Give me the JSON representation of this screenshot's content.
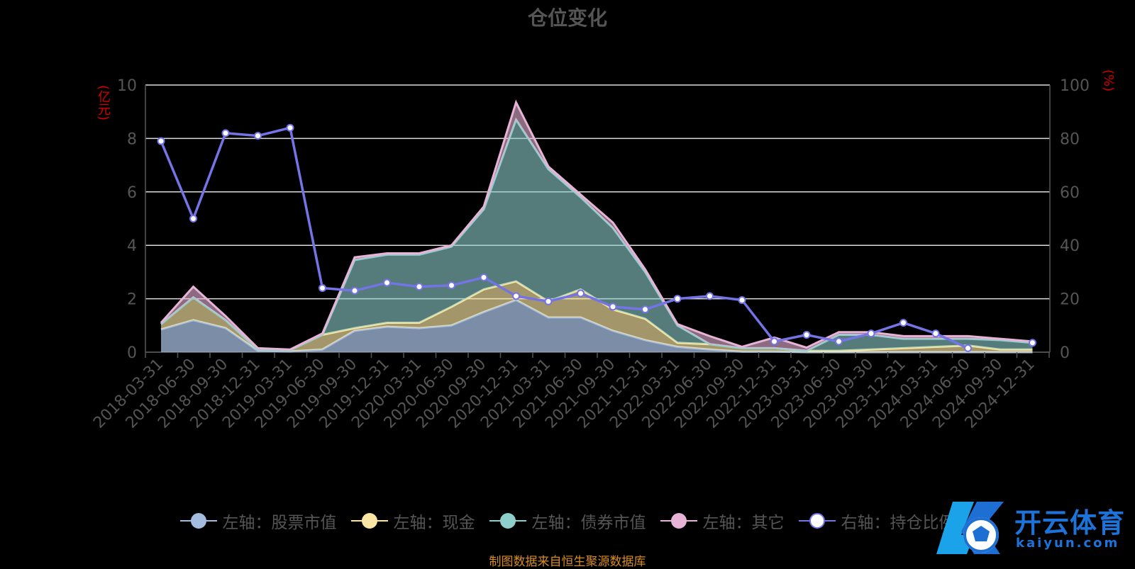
{
  "chart_data": {
    "type": "area",
    "title": "仓位变化",
    "left_axis_unit": "(亿元)",
    "right_axis_unit": "(%)",
    "left_ylim": [
      0,
      10
    ],
    "right_ylim": [
      0,
      100
    ],
    "left_ticks": [
      "0",
      "2",
      "4",
      "6",
      "8",
      "10"
    ],
    "right_ticks": [
      "0",
      "20",
      "40",
      "60",
      "80",
      "100"
    ],
    "grid": true,
    "legend_position": "bottom",
    "categories": [
      "2018-03-31",
      "2018-06-30",
      "2018-09-30",
      "2018-12-31",
      "2019-03-31",
      "2019-06-30",
      "2019-09-30",
      "2019-12-31",
      "2020-03-31",
      "2020-06-30",
      "2020-09-30",
      "2020-12-31",
      "2021-03-31",
      "2021-06-30",
      "2021-09-30",
      "2021-12-31",
      "2022-03-31",
      "2022-06-30",
      "2022-09-30",
      "2022-12-31",
      "2023-03-31",
      "2023-06-30",
      "2023-09-30",
      "2023-12-31",
      "2024-03-31",
      "2024-06-30",
      "2024-09-30",
      "2024-12-31"
    ],
    "series": [
      {
        "name": "左轴：股票市值",
        "axis": "left",
        "color": "#a4bcdf",
        "values": [
          0.85,
          1.2,
          0.9,
          0.05,
          0.03,
          0.1,
          0.8,
          0.95,
          0.9,
          1.0,
          1.5,
          1.95,
          1.3,
          1.3,
          0.8,
          0.45,
          0.2,
          0.1,
          0.02,
          0.02,
          0.0,
          0.0,
          0.0,
          0.0,
          0.0,
          0.0,
          0.0,
          0.0
        ]
      },
      {
        "name": "左轴：现金",
        "axis": "left",
        "color": "#fbe7a3",
        "values": [
          0.2,
          0.85,
          0.3,
          0.05,
          0.05,
          0.55,
          0.1,
          0.15,
          0.2,
          0.7,
          0.85,
          0.7,
          0.6,
          1.05,
          0.8,
          0.8,
          0.15,
          0.2,
          0.13,
          0.13,
          0.05,
          0.05,
          0.1,
          0.15,
          0.2,
          0.25,
          0.1,
          0.1
        ]
      },
      {
        "name": "左轴：债券市值",
        "axis": "left",
        "color": "#8ecfcc",
        "values": [
          0.0,
          0.0,
          0.0,
          0.0,
          0.0,
          0.0,
          2.55,
          2.55,
          2.55,
          2.25,
          3.0,
          6.05,
          4.95,
          3.45,
          3.05,
          1.75,
          0.65,
          0.0,
          0.0,
          0.0,
          0.0,
          0.6,
          0.55,
          0.35,
          0.3,
          0.25,
          0.35,
          0.25
        ]
      },
      {
        "name": "左轴：其它",
        "axis": "left",
        "color": "#e7b3d6",
        "values": [
          0.05,
          0.4,
          0.15,
          0.05,
          0.02,
          0.05,
          0.1,
          0.05,
          0.05,
          0.05,
          0.1,
          0.65,
          0.1,
          0.1,
          0.2,
          0.1,
          0.05,
          0.3,
          0.05,
          0.4,
          0.12,
          0.1,
          0.1,
          0.1,
          0.1,
          0.1,
          0.05,
          0.05
        ]
      },
      {
        "name": "右轴：持仓比例",
        "axis": "right",
        "color": "#7474e6",
        "values": [
          79,
          50,
          82,
          81,
          84,
          24,
          23,
          26,
          24.5,
          25,
          28,
          21,
          19,
          22,
          17,
          16,
          20,
          21,
          19.5,
          4,
          6.5,
          4,
          7,
          11,
          7,
          1.5,
          null,
          3.5
        ]
      }
    ]
  },
  "source_note": "制图数据来自恒生聚源数据库",
  "watermark": {
    "name": "开云体育",
    "sub": "kaiyun.com"
  }
}
